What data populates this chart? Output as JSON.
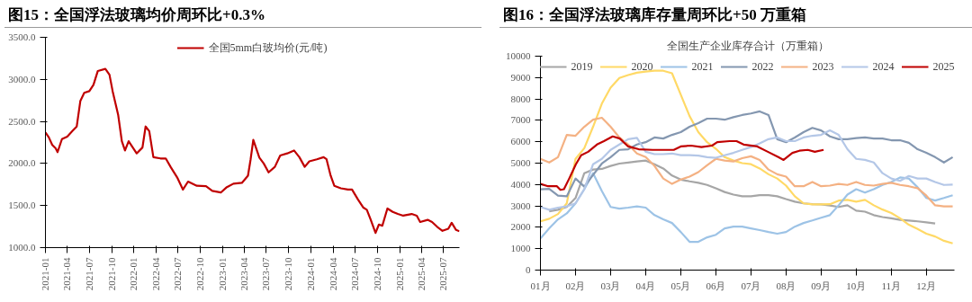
{
  "chart_data": [
    {
      "type": "line",
      "title": "图15：全国浮法玻璃均价周环比+0.3%",
      "legend": "top",
      "grid": false,
      "xlim": [
        "2021-01-01",
        "2025-09-04"
      ],
      "xticks": [
        "2021-01",
        "2021-04",
        "2021-07",
        "2021-10",
        "2022-01",
        "2022-04",
        "2022-07",
        "2022-10",
        "2023-01",
        "2023-04",
        "2023-07",
        "2023-10",
        "2024-01",
        "2024-04",
        "2024-07",
        "2024-10",
        "2025-01",
        "2025-04",
        "2025-07"
      ],
      "ylim": [
        1000,
        3500
      ],
      "yticks": [
        {
          "value": 1000,
          "label": "1000.0"
        },
        {
          "value": 1500,
          "label": "1500.0"
        },
        {
          "value": 2000,
          "label": "2000.0"
        },
        {
          "value": 2500,
          "label": "2500.0"
        },
        {
          "value": 3000,
          "label": "3000.0"
        },
        {
          "value": 3500,
          "label": "3500.0"
        }
      ],
      "x": [
        "2021-01-01",
        "2021-01-15",
        "2021-01-29",
        "2021-02-12",
        "2021-02-20",
        "2021-03-10",
        "2021-04-01",
        "2021-04-22",
        "2021-05-10",
        "2021-05-25",
        "2021-06-10",
        "2021-07-01",
        "2021-07-18",
        "2021-08-05",
        "2021-09-05",
        "2021-09-22",
        "2021-10-05",
        "2021-10-28",
        "2021-11-12",
        "2021-11-25",
        "2021-12-10",
        "2022-01-12",
        "2022-02-05",
        "2022-02-18",
        "2022-03-05",
        "2022-03-22",
        "2022-04-20",
        "2022-05-12",
        "2022-06-02",
        "2022-06-28",
        "2022-07-22",
        "2022-08-12",
        "2022-09-17",
        "2022-10-25",
        "2022-11-20",
        "2022-12-25",
        "2023-01-17",
        "2023-02-15",
        "2023-03-22",
        "2023-04-16",
        "2023-04-27",
        "2023-05-08",
        "2023-06-02",
        "2023-06-20",
        "2023-07-10",
        "2023-08-05",
        "2023-08-27",
        "2023-09-25",
        "2023-10-23",
        "2023-11-14",
        "2023-12-06",
        "2023-12-25",
        "2024-01-25",
        "2024-02-22",
        "2024-03-05",
        "2024-03-22",
        "2024-04-06",
        "2024-05-03",
        "2024-06-01",
        "2024-06-18",
        "2024-07-13",
        "2024-08-04",
        "2024-08-18",
        "2024-09-02",
        "2024-09-23",
        "2024-10-07",
        "2024-10-21",
        "2024-11-11",
        "2024-12-03",
        "2024-12-24",
        "2025-01-15",
        "2025-02-19",
        "2025-03-12",
        "2025-03-26",
        "2025-04-26",
        "2025-05-14",
        "2025-06-05",
        "2025-06-26",
        "2025-07-20",
        "2025-08-03",
        "2025-08-21",
        "2025-09-04"
      ],
      "series": [
        {
          "name": "全国5mm白玻均价(元/吨)",
          "color": "#c00000",
          "values": [
            2370,
            2310,
            2220,
            2180,
            2135,
            2290,
            2320,
            2385,
            2440,
            2745,
            2840,
            2860,
            2935,
            3100,
            3125,
            3055,
            2860,
            2575,
            2265,
            2155,
            2265,
            2120,
            2190,
            2440,
            2385,
            2075,
            2060,
            2060,
            1955,
            1835,
            1690,
            1785,
            1735,
            1730,
            1675,
            1655,
            1715,
            1760,
            1770,
            1855,
            2050,
            2280,
            2070,
            2000,
            1895,
            1960,
            2095,
            2120,
            2155,
            2075,
            1960,
            2025,
            2050,
            2075,
            2050,
            1855,
            1735,
            1705,
            1690,
            1690,
            1570,
            1475,
            1450,
            1340,
            1175,
            1275,
            1260,
            1465,
            1425,
            1400,
            1380,
            1400,
            1380,
            1305,
            1330,
            1305,
            1245,
            1200,
            1225,
            1295,
            1210,
            1195
          ]
        }
      ]
    },
    {
      "type": "line",
      "title": "图16：全国浮法玻璃库存量周环比+50 万重箱",
      "subtitle": "全国生产企业库存合计（万重箱）",
      "legend": "top",
      "grid": false,
      "xlim": [
        1,
        12.8
      ],
      "xticks": [
        {
          "value": 1,
          "label": "01月"
        },
        {
          "value": 2,
          "label": "02月"
        },
        {
          "value": 3,
          "label": "03月"
        },
        {
          "value": 4,
          "label": "04月"
        },
        {
          "value": 5,
          "label": "05月"
        },
        {
          "value": 6,
          "label": "06月"
        },
        {
          "value": 7,
          "label": "07月"
        },
        {
          "value": 8,
          "label": "08月"
        },
        {
          "value": 9,
          "label": "09月"
        },
        {
          "value": 10,
          "label": "10月"
        },
        {
          "value": 11,
          "label": "11月"
        },
        {
          "value": 12,
          "label": "12月"
        }
      ],
      "ylim": [
        0,
        10000
      ],
      "yticks": [
        0,
        1000,
        2000,
        3000,
        4000,
        5000,
        6000,
        7000,
        8000,
        9000,
        10000
      ],
      "x": [
        1.0,
        1.25,
        1.5,
        1.75,
        2.0,
        2.25,
        2.5,
        2.75,
        3.0,
        3.25,
        3.5,
        3.75,
        4.0,
        4.25,
        4.5,
        4.75,
        5.0,
        5.25,
        5.5,
        5.75,
        6.0,
        6.25,
        6.5,
        6.75,
        7.0,
        7.25,
        7.5,
        7.75,
        8.0,
        8.25,
        8.5,
        8.75,
        9.0,
        9.25,
        9.5,
        9.75,
        10.0,
        10.25,
        10.5,
        10.75,
        11.0,
        11.25,
        11.5,
        11.75,
        12.0,
        12.25,
        12.5,
        12.75
      ],
      "series": [
        {
          "name": "2019",
          "color": "#a6a6a6",
          "values": [
            null,
            2750,
            2820,
            2950,
            3370,
            4530,
            4700,
            4730,
            4870,
            4980,
            5030,
            5080,
            5120,
            4950,
            4750,
            4420,
            4230,
            4150,
            4080,
            3980,
            3820,
            3650,
            3530,
            3450,
            3450,
            3500,
            3500,
            3450,
            3320,
            3200,
            3120,
            3080,
            3070,
            3020,
            2950,
            3030,
            2780,
            2730,
            2570,
            2480,
            2420,
            2350,
            2320,
            2280,
            2230,
            2180,
            null,
            null
          ]
        },
        {
          "name": "2020",
          "color": "#ffd966",
          "values": [
            2280,
            2400,
            2620,
            3120,
            5200,
            5700,
            6700,
            7780,
            8530,
            8980,
            9120,
            9230,
            9280,
            9320,
            9320,
            9200,
            8200,
            7200,
            6450,
            5980,
            5670,
            5280,
            5120,
            5000,
            4950,
            4750,
            4480,
            4280,
            3950,
            3450,
            3120,
            3070,
            3070,
            3080,
            3250,
            3280,
            3200,
            3280,
            3030,
            2830,
            2670,
            2420,
            2120,
            1920,
            1700,
            1570,
            1370,
            1250
          ]
        },
        {
          "name": "2021",
          "color": "#9dc3e6",
          "values": [
            1480,
            1950,
            2370,
            2650,
            3120,
            3780,
            4530,
            3700,
            2950,
            2870,
            2920,
            2980,
            2920,
            2570,
            2370,
            2200,
            1780,
            1320,
            1320,
            1530,
            1650,
            1950,
            2030,
            2030,
            1950,
            1870,
            1780,
            1700,
            1780,
            2030,
            2200,
            2320,
            2450,
            2570,
            3030,
            3530,
            3780,
            3620,
            3780,
            3980,
            4120,
            4330,
            4280,
            3870,
            3370,
            3250,
            3370,
            3500
          ]
        },
        {
          "name": "2022",
          "color": "#8497b0",
          "values": [
            3780,
            3800,
            3480,
            3450,
            4280,
            3900,
            4450,
            4980,
            5280,
            5620,
            5650,
            5870,
            5980,
            6200,
            6150,
            6320,
            6450,
            6700,
            6870,
            7080,
            7080,
            7030,
            7150,
            7250,
            7320,
            7420,
            7250,
            6120,
            5980,
            6200,
            6450,
            6650,
            6530,
            6250,
            6120,
            6120,
            6170,
            6200,
            6150,
            6150,
            6070,
            6070,
            5950,
            5650,
            5480,
            5280,
            5030,
            5280
          ]
        },
        {
          "name": "2023",
          "color": "#f4b183",
          "values": [
            5200,
            5030,
            5280,
            6320,
            6280,
            6700,
            7030,
            7120,
            6700,
            6200,
            5870,
            5450,
            5280,
            4870,
            4280,
            4030,
            4230,
            4370,
            4580,
            4900,
            5200,
            5120,
            5080,
            5230,
            5320,
            5150,
            4700,
            4480,
            4370,
            3920,
            3920,
            4120,
            3920,
            3950,
            4030,
            3980,
            4120,
            3980,
            3950,
            4030,
            4080,
            3980,
            3920,
            3830,
            3480,
            3030,
            2980,
            2980
          ]
        },
        {
          "name": "2024",
          "color": "#b4c7e7",
          "values": [
            2950,
            2820,
            2920,
            2980,
            3120,
            3780,
            4950,
            5200,
            5620,
            5870,
            6120,
            6180,
            5530,
            5420,
            5420,
            5450,
            5370,
            5370,
            5350,
            5280,
            5250,
            5370,
            5480,
            5620,
            5750,
            5920,
            6120,
            6200,
            6030,
            6030,
            6200,
            6280,
            6320,
            6530,
            6320,
            5650,
            5200,
            5150,
            5030,
            4530,
            4280,
            4170,
            4400,
            4280,
            4280,
            4120,
            3980,
            4000
          ]
        },
        {
          "name": "2025",
          "color": "#c00000",
          "x": [
            1.0,
            1.22,
            1.47,
            1.57,
            1.67,
            1.82,
            2.01,
            2.16,
            2.36,
            2.61,
            2.81,
            3.06,
            3.26,
            3.5,
            3.8,
            4.2,
            4.8,
            5.0,
            5.29,
            5.59,
            5.89,
            6.04,
            6.39,
            6.59,
            6.79,
            7.18,
            7.48,
            7.78,
            7.93,
            8.18,
            8.38,
            8.62,
            8.82,
            9.07
          ],
          "values": [
            4030,
            3920,
            3920,
            3750,
            3780,
            4280,
            4950,
            5370,
            5530,
            5870,
            6030,
            6250,
            6150,
            5780,
            5650,
            5620,
            5620,
            5780,
            5820,
            5750,
            5820,
            5980,
            6030,
            6030,
            5870,
            5780,
            5530,
            5280,
            5150,
            5480,
            5580,
            5620,
            5530,
            5620
          ]
        }
      ]
    }
  ]
}
